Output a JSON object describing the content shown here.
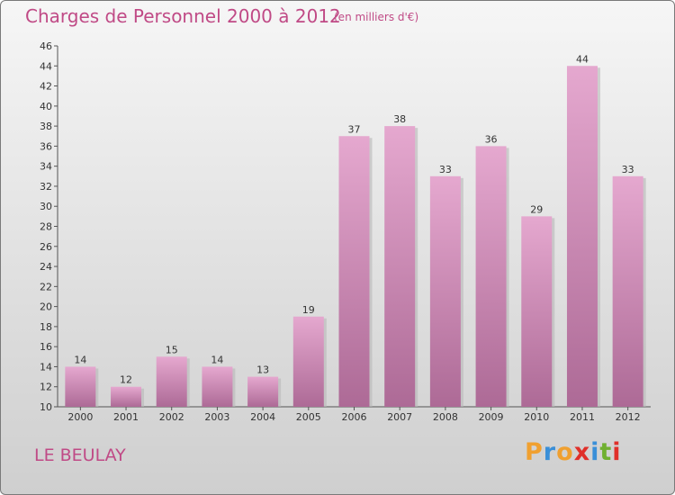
{
  "header": {
    "title": "Charges de Personnel 2000 à 2012",
    "unit_note": "(en milliers d'€)"
  },
  "footer": {
    "commune": "LE BEULAY",
    "logo": {
      "letters": [
        "P",
        "r",
        "o",
        "x",
        "i",
        "t",
        "i"
      ],
      "colors": [
        "#f0a030",
        "#3a8fd8",
        "#f0a030",
        "#e0302a",
        "#3a8fd8",
        "#70b030",
        "#e0302a"
      ]
    }
  },
  "colors": {
    "accent": "#c04a86",
    "bar_top": "#e5a8cf",
    "bar_bottom": "#ad6a96"
  },
  "chart_data": {
    "type": "bar",
    "title": "Charges de Personnel 2000 à 2012",
    "subtitle": "(en milliers d'€)",
    "categories": [
      "2000",
      "2001",
      "2002",
      "2003",
      "2004",
      "2005",
      "2006",
      "2007",
      "2008",
      "2009",
      "2010",
      "2011",
      "2012"
    ],
    "values": [
      14,
      12,
      15,
      14,
      13,
      19,
      37,
      38,
      33,
      36,
      29,
      44,
      33
    ],
    "ylim": [
      10,
      46
    ],
    "yticks": [
      10,
      12,
      14,
      16,
      18,
      20,
      22,
      24,
      26,
      28,
      30,
      32,
      34,
      36,
      38,
      40,
      42,
      44,
      46
    ],
    "xlabel": "",
    "ylabel": "",
    "grid": false,
    "legend": "none"
  }
}
